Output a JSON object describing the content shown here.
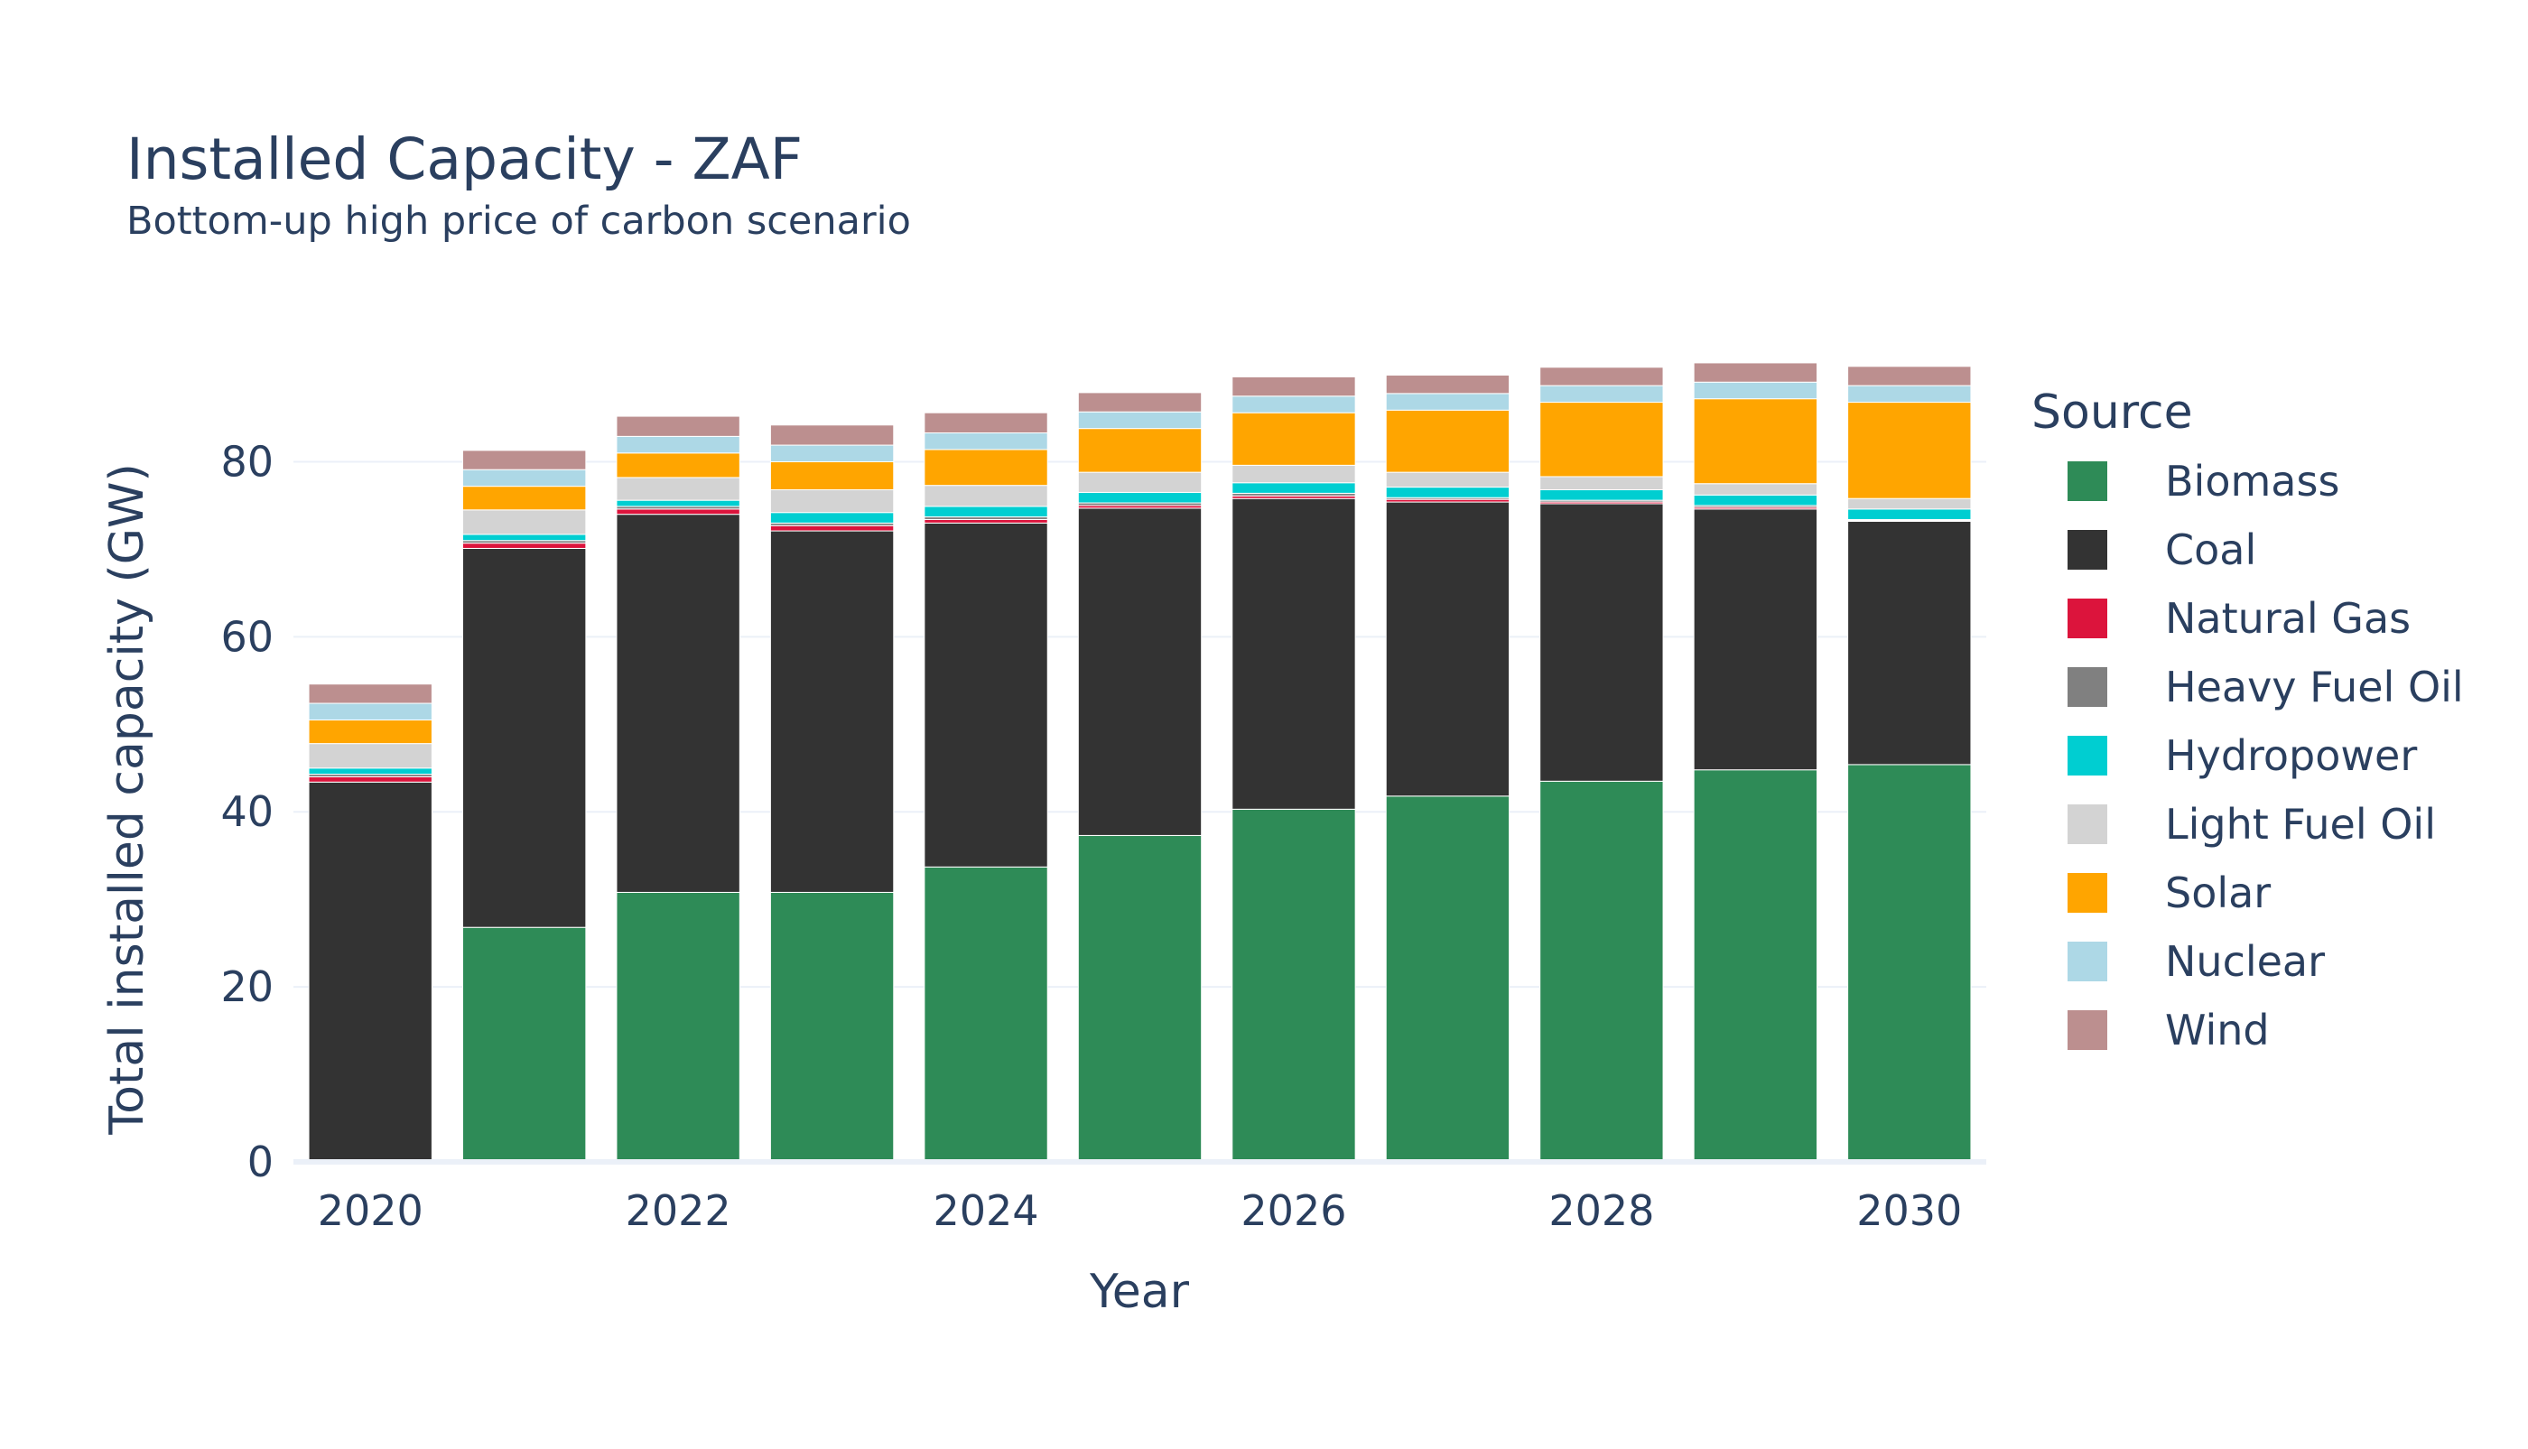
{
  "chart_data": {
    "type": "bar",
    "stacked": true,
    "title": "Installed Capacity - ZAF",
    "subtitle": "Bottom-up high price of carbon scenario",
    "xlabel": "Year",
    "ylabel": "Total installed capacity (GW)",
    "ylim": [
      0,
      91.5
    ],
    "y_ticks": [
      0,
      20,
      40,
      60,
      80
    ],
    "x_ticks": [
      2020,
      2022,
      2024,
      2026,
      2028,
      2030
    ],
    "grid": true,
    "legend_title": "Source",
    "legend_position": "right",
    "categories": [
      2020,
      2021,
      2022,
      2023,
      2024,
      2025,
      2026,
      2027,
      2028,
      2029,
      2030
    ],
    "series": [
      {
        "name": "Biomass",
        "color": "#2e8b57",
        "values": [
          0,
          26.8,
          30.8,
          30.8,
          33.7,
          37.3,
          40.3,
          41.8,
          43.5,
          44.8,
          45.4
        ]
      },
      {
        "name": "Coal",
        "color": "#333333",
        "values": [
          43.4,
          43.3,
          43.2,
          41.3,
          39.3,
          37.4,
          35.5,
          33.6,
          31.7,
          29.8,
          27.8
        ]
      },
      {
        "name": "Natural Gas",
        "color": "#dc143c",
        "values": [
          0.6,
          0.6,
          0.6,
          0.6,
          0.4,
          0.3,
          0.3,
          0.3,
          0.2,
          0.2,
          0.1
        ]
      },
      {
        "name": "Heavy Fuel Oil",
        "color": "#808080",
        "values": [
          0.3,
          0.3,
          0.3,
          0.3,
          0.3,
          0.3,
          0.3,
          0.2,
          0.2,
          0.2,
          0.1
        ]
      },
      {
        "name": "Hydropower",
        "color": "#00ced1",
        "values": [
          0.7,
          0.7,
          0.7,
          1.2,
          1.2,
          1.2,
          1.2,
          1.2,
          1.2,
          1.2,
          1.2
        ]
      },
      {
        "name": "Light Fuel Oil",
        "color": "#d3d3d3",
        "values": [
          2.8,
          2.8,
          2.6,
          2.6,
          2.4,
          2.3,
          2.0,
          1.7,
          1.5,
          1.3,
          1.2
        ]
      },
      {
        "name": "Solar",
        "color": "#ffa500",
        "values": [
          2.7,
          2.7,
          2.8,
          3.2,
          4.1,
          5.0,
          6.0,
          7.1,
          8.5,
          9.7,
          11.0
        ]
      },
      {
        "name": "Nuclear",
        "color": "#add8e6",
        "values": [
          1.9,
          1.9,
          1.9,
          1.9,
          1.9,
          1.9,
          1.9,
          1.9,
          1.9,
          1.9,
          1.9
        ]
      },
      {
        "name": "Wind",
        "color": "#bc8f8f",
        "values": [
          2.2,
          2.2,
          2.3,
          2.3,
          2.3,
          2.2,
          2.2,
          2.1,
          2.1,
          2.2,
          2.2
        ]
      }
    ]
  }
}
